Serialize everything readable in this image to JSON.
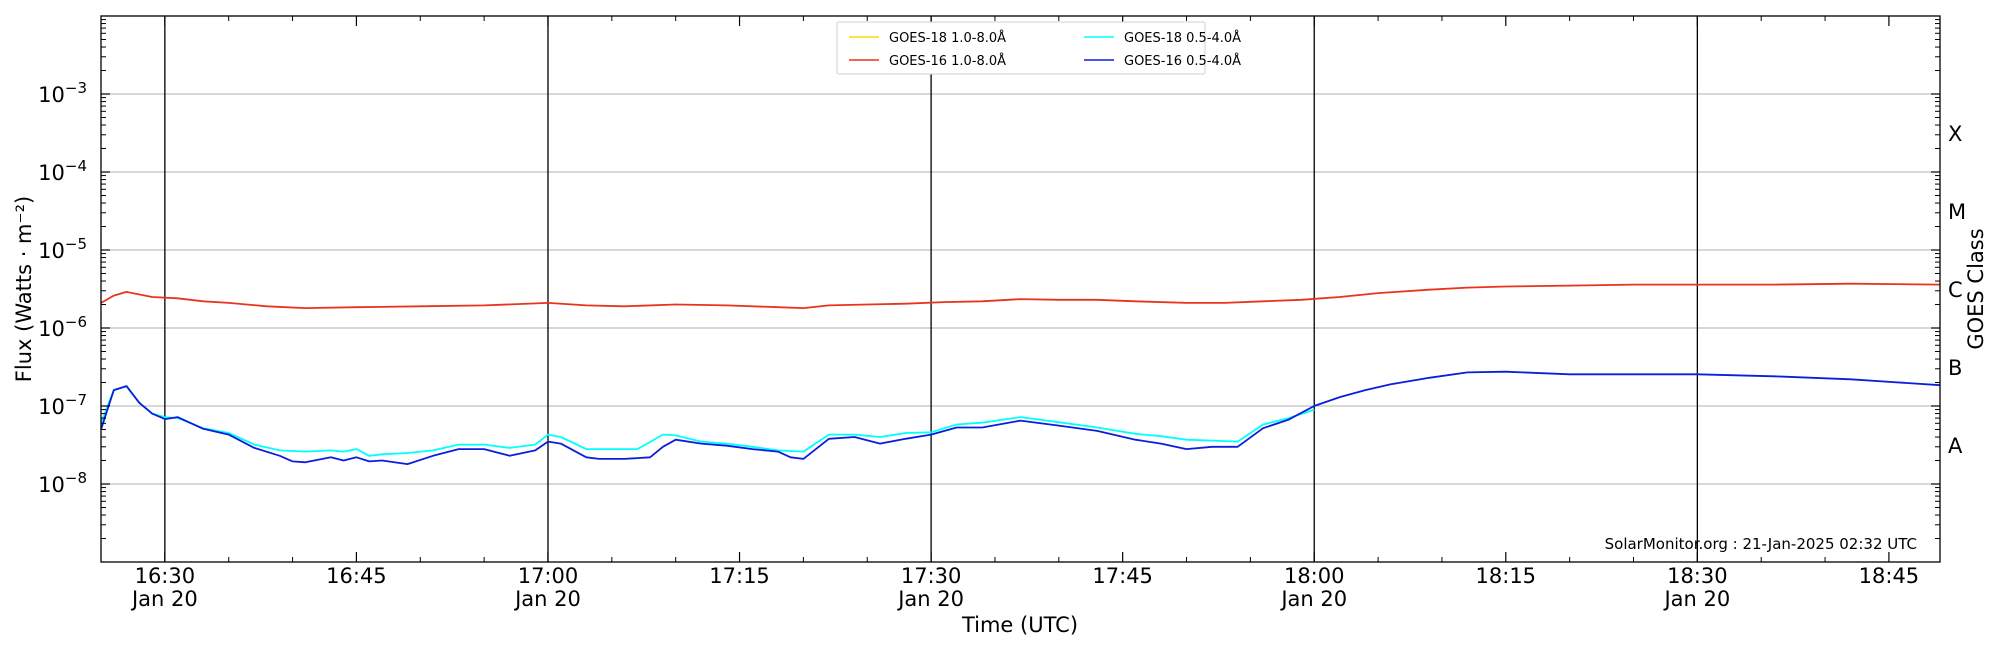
{
  "chart_data": {
    "type": "line",
    "xlabel": "Time (UTC)",
    "ylabel": "Flux (Watts · m⁻²)",
    "y2label": "GOES Class",
    "yscale": "log",
    "ylim": [
      1e-09,
      0.01
    ],
    "xlim": [
      "16:25",
      "18:49"
    ],
    "grid": "horizontal at y ticks",
    "vertical_lines": [
      "16:30",
      "17:00",
      "17:30",
      "18:00",
      "18:30"
    ],
    "x_ticks": [
      {
        "t": "16:30",
        "label": "16:30",
        "sub": "Jan 20"
      },
      {
        "t": "16:45",
        "label": "16:45",
        "sub": ""
      },
      {
        "t": "17:00",
        "label": "17:00",
        "sub": "Jan 20"
      },
      {
        "t": "17:15",
        "label": "17:15",
        "sub": ""
      },
      {
        "t": "17:30",
        "label": "17:30",
        "sub": "Jan 20"
      },
      {
        "t": "17:45",
        "label": "17:45",
        "sub": ""
      },
      {
        "t": "18:00",
        "label": "18:00",
        "sub": "Jan 20"
      },
      {
        "t": "18:15",
        "label": "18:15",
        "sub": ""
      },
      {
        "t": "18:30",
        "label": "18:30",
        "sub": "Jan 20"
      },
      {
        "t": "18:45",
        "label": "18:45",
        "sub": ""
      }
    ],
    "y_ticks": [
      {
        "value": 1e-08,
        "label": "10",
        "exp": "−8"
      },
      {
        "value": 1e-07,
        "label": "10",
        "exp": "−7"
      },
      {
        "value": 1e-06,
        "label": "10",
        "exp": "−6"
      },
      {
        "value": 1e-05,
        "label": "10",
        "exp": "−5"
      },
      {
        "value": 0.0001,
        "label": "10",
        "exp": "−4"
      },
      {
        "value": 0.001,
        "label": "10",
        "exp": "−3"
      }
    ],
    "goes_classes": [
      {
        "label": "A",
        "value": 3.16e-08
      },
      {
        "label": "B",
        "value": 3.16e-07
      },
      {
        "label": "C",
        "value": 3.16e-06
      },
      {
        "label": "M",
        "value": 3.16e-05
      },
      {
        "label": "X",
        "value": 0.000316
      }
    ],
    "legend": {
      "placement": "top-center",
      "entries": [
        {
          "label": "GOES-18 1.0-8.0Å",
          "color": "#ffd700"
        },
        {
          "label": "GOES-16 1.0-8.0Å",
          "color": "#e8341c"
        },
        {
          "label": "GOES-18 0.5-4.0Å",
          "color": "#00ffff"
        },
        {
          "label": "GOES-16 0.5-4.0Å",
          "color": "#0a1edc"
        }
      ]
    },
    "annotation": "SolarMonitor.org : 21-Jan-2025 02:32 UTC",
    "series": [
      {
        "name": "GOES-16 1.0-8.0Å",
        "color": "#e8341c",
        "x": [
          "16:25",
          "16:26",
          "16:27",
          "16:29",
          "16:31",
          "16:33",
          "16:35",
          "16:38",
          "16:41",
          "16:45",
          "16:50",
          "16:55",
          "17:00",
          "17:03",
          "17:06",
          "17:10",
          "17:14",
          "17:18",
          "17:20",
          "17:22",
          "17:25",
          "17:28",
          "17:31",
          "17:34",
          "17:37",
          "17:40",
          "17:43",
          "17:46",
          "17:50",
          "17:53",
          "17:56",
          "17:59",
          "18:02",
          "18:05",
          "18:09",
          "18:12",
          "18:15",
          "18:20",
          "18:25",
          "18:30",
          "18:36",
          "18:42",
          "18:49"
        ],
        "y": [
          2.1e-06,
          2.6e-06,
          2.9e-06,
          2.5e-06,
          2.4e-06,
          2.2e-06,
          2.1e-06,
          1.9e-06,
          1.8e-06,
          1.85e-06,
          1.9e-06,
          1.95e-06,
          2.1e-06,
          1.95e-06,
          1.9e-06,
          2e-06,
          1.95e-06,
          1.85e-06,
          1.8e-06,
          1.95e-06,
          2e-06,
          2.05e-06,
          2.15e-06,
          2.2e-06,
          2.35e-06,
          2.3e-06,
          2.3e-06,
          2.2e-06,
          2.1e-06,
          2.1e-06,
          2.2e-06,
          2.3e-06,
          2.5e-06,
          2.8e-06,
          3.1e-06,
          3.3e-06,
          3.4e-06,
          3.5e-06,
          3.6e-06,
          3.6e-06,
          3.6e-06,
          3.7e-06,
          3.6e-06
        ]
      },
      {
        "name": "GOES-18 0.5-4.0Å",
        "color": "#00ffff",
        "x": [
          "16:25",
          "16:26",
          "16:27",
          "16:28",
          "16:29",
          "16:30",
          "16:31",
          "16:33",
          "16:35",
          "16:37",
          "16:39",
          "16:41",
          "16:43",
          "16:44",
          "16:45",
          "16:46",
          "16:47",
          "16:49",
          "16:51",
          "16:53",
          "16:55",
          "16:57",
          "16:59",
          "17:00",
          "17:01",
          "17:03",
          "17:05",
          "17:07",
          "17:09",
          "17:10",
          "17:12",
          "17:14",
          "17:16",
          "17:18",
          "17:20",
          "17:22",
          "17:24",
          "17:26",
          "17:28",
          "17:30",
          "17:32",
          "17:34",
          "17:37",
          "17:40",
          "17:43",
          "17:46",
          "17:48",
          "17:50",
          "17:52",
          "17:54",
          "17:56",
          "17:58",
          "18:00"
        ],
        "y": [
          6e-08,
          1.6e-07,
          1.8e-07,
          1.1e-07,
          8e-08,
          7.2e-08,
          7e-08,
          5.2e-08,
          4.5e-08,
          3.2e-08,
          2.7e-08,
          2.6e-08,
          2.7e-08,
          2.6e-08,
          2.8e-08,
          2.3e-08,
          2.4e-08,
          2.5e-08,
          2.7e-08,
          3.2e-08,
          3.2e-08,
          2.9e-08,
          3.2e-08,
          4.3e-08,
          4e-08,
          2.8e-08,
          2.8e-08,
          2.8e-08,
          4.3e-08,
          4.2e-08,
          3.5e-08,
          3.3e-08,
          3e-08,
          2.7e-08,
          2.6e-08,
          4.3e-08,
          4.3e-08,
          4e-08,
          4.5e-08,
          4.6e-08,
          5.8e-08,
          6.1e-08,
          7.2e-08,
          6.2e-08,
          5.3e-08,
          4.4e-08,
          4.1e-08,
          3.7e-08,
          3.6e-08,
          3.5e-08,
          5.8e-08,
          7e-08,
          9e-08
        ]
      },
      {
        "name": "GOES-16 0.5-4.0Å",
        "color": "#0a1edc",
        "x": [
          "16:25",
          "16:26",
          "16:27",
          "16:28",
          "16:29",
          "16:30",
          "16:31",
          "16:33",
          "16:35",
          "16:37",
          "16:39",
          "16:40",
          "16:41",
          "16:43",
          "16:44",
          "16:45",
          "16:46",
          "16:47",
          "16:49",
          "16:51",
          "16:53",
          "16:55",
          "16:57",
          "16:59",
          "17:00",
          "17:01",
          "17:03",
          "17:04",
          "17:06",
          "17:08",
          "17:09",
          "17:10",
          "17:12",
          "17:14",
          "17:16",
          "17:18",
          "17:19",
          "17:20",
          "17:22",
          "17:24",
          "17:26",
          "17:28",
          "17:30",
          "17:32",
          "17:34",
          "17:37",
          "17:40",
          "17:43",
          "17:46",
          "17:48",
          "17:50",
          "17:52",
          "17:54",
          "17:56",
          "17:58",
          "18:00",
          "18:02",
          "18:04",
          "18:06",
          "18:09",
          "18:12",
          "18:15",
          "18:20",
          "18:25",
          "18:30",
          "18:36",
          "18:42",
          "18:49"
        ],
        "y": [
          5e-08,
          1.6e-07,
          1.8e-07,
          1.1e-07,
          8e-08,
          6.8e-08,
          7.2e-08,
          5.1e-08,
          4.3e-08,
          2.9e-08,
          2.3e-08,
          1.95e-08,
          1.9e-08,
          2.2e-08,
          2e-08,
          2.2e-08,
          1.95e-08,
          2e-08,
          1.8e-08,
          2.3e-08,
          2.8e-08,
          2.8e-08,
          2.3e-08,
          2.7e-08,
          3.5e-08,
          3.3e-08,
          2.2e-08,
          2.1e-08,
          2.1e-08,
          2.2e-08,
          3e-08,
          3.7e-08,
          3.3e-08,
          3.1e-08,
          2.8e-08,
          2.6e-08,
          2.2e-08,
          2.1e-08,
          3.8e-08,
          4e-08,
          3.3e-08,
          3.8e-08,
          4.3e-08,
          5.3e-08,
          5.3e-08,
          6.5e-08,
          5.6e-08,
          4.8e-08,
          3.7e-08,
          3.3e-08,
          2.8e-08,
          3e-08,
          3e-08,
          5.2e-08,
          6.7e-08,
          1e-07,
          1.3e-07,
          1.6e-07,
          1.9e-07,
          2.3e-07,
          2.7e-07,
          2.75e-07,
          2.55e-07,
          2.55e-07,
          2.55e-07,
          2.4e-07,
          2.2e-07,
          1.85e-07
        ]
      },
      {
        "name": "GOES-18 1.0-8.0Å",
        "color": "#ffd700",
        "x": [],
        "y": []
      }
    ]
  }
}
